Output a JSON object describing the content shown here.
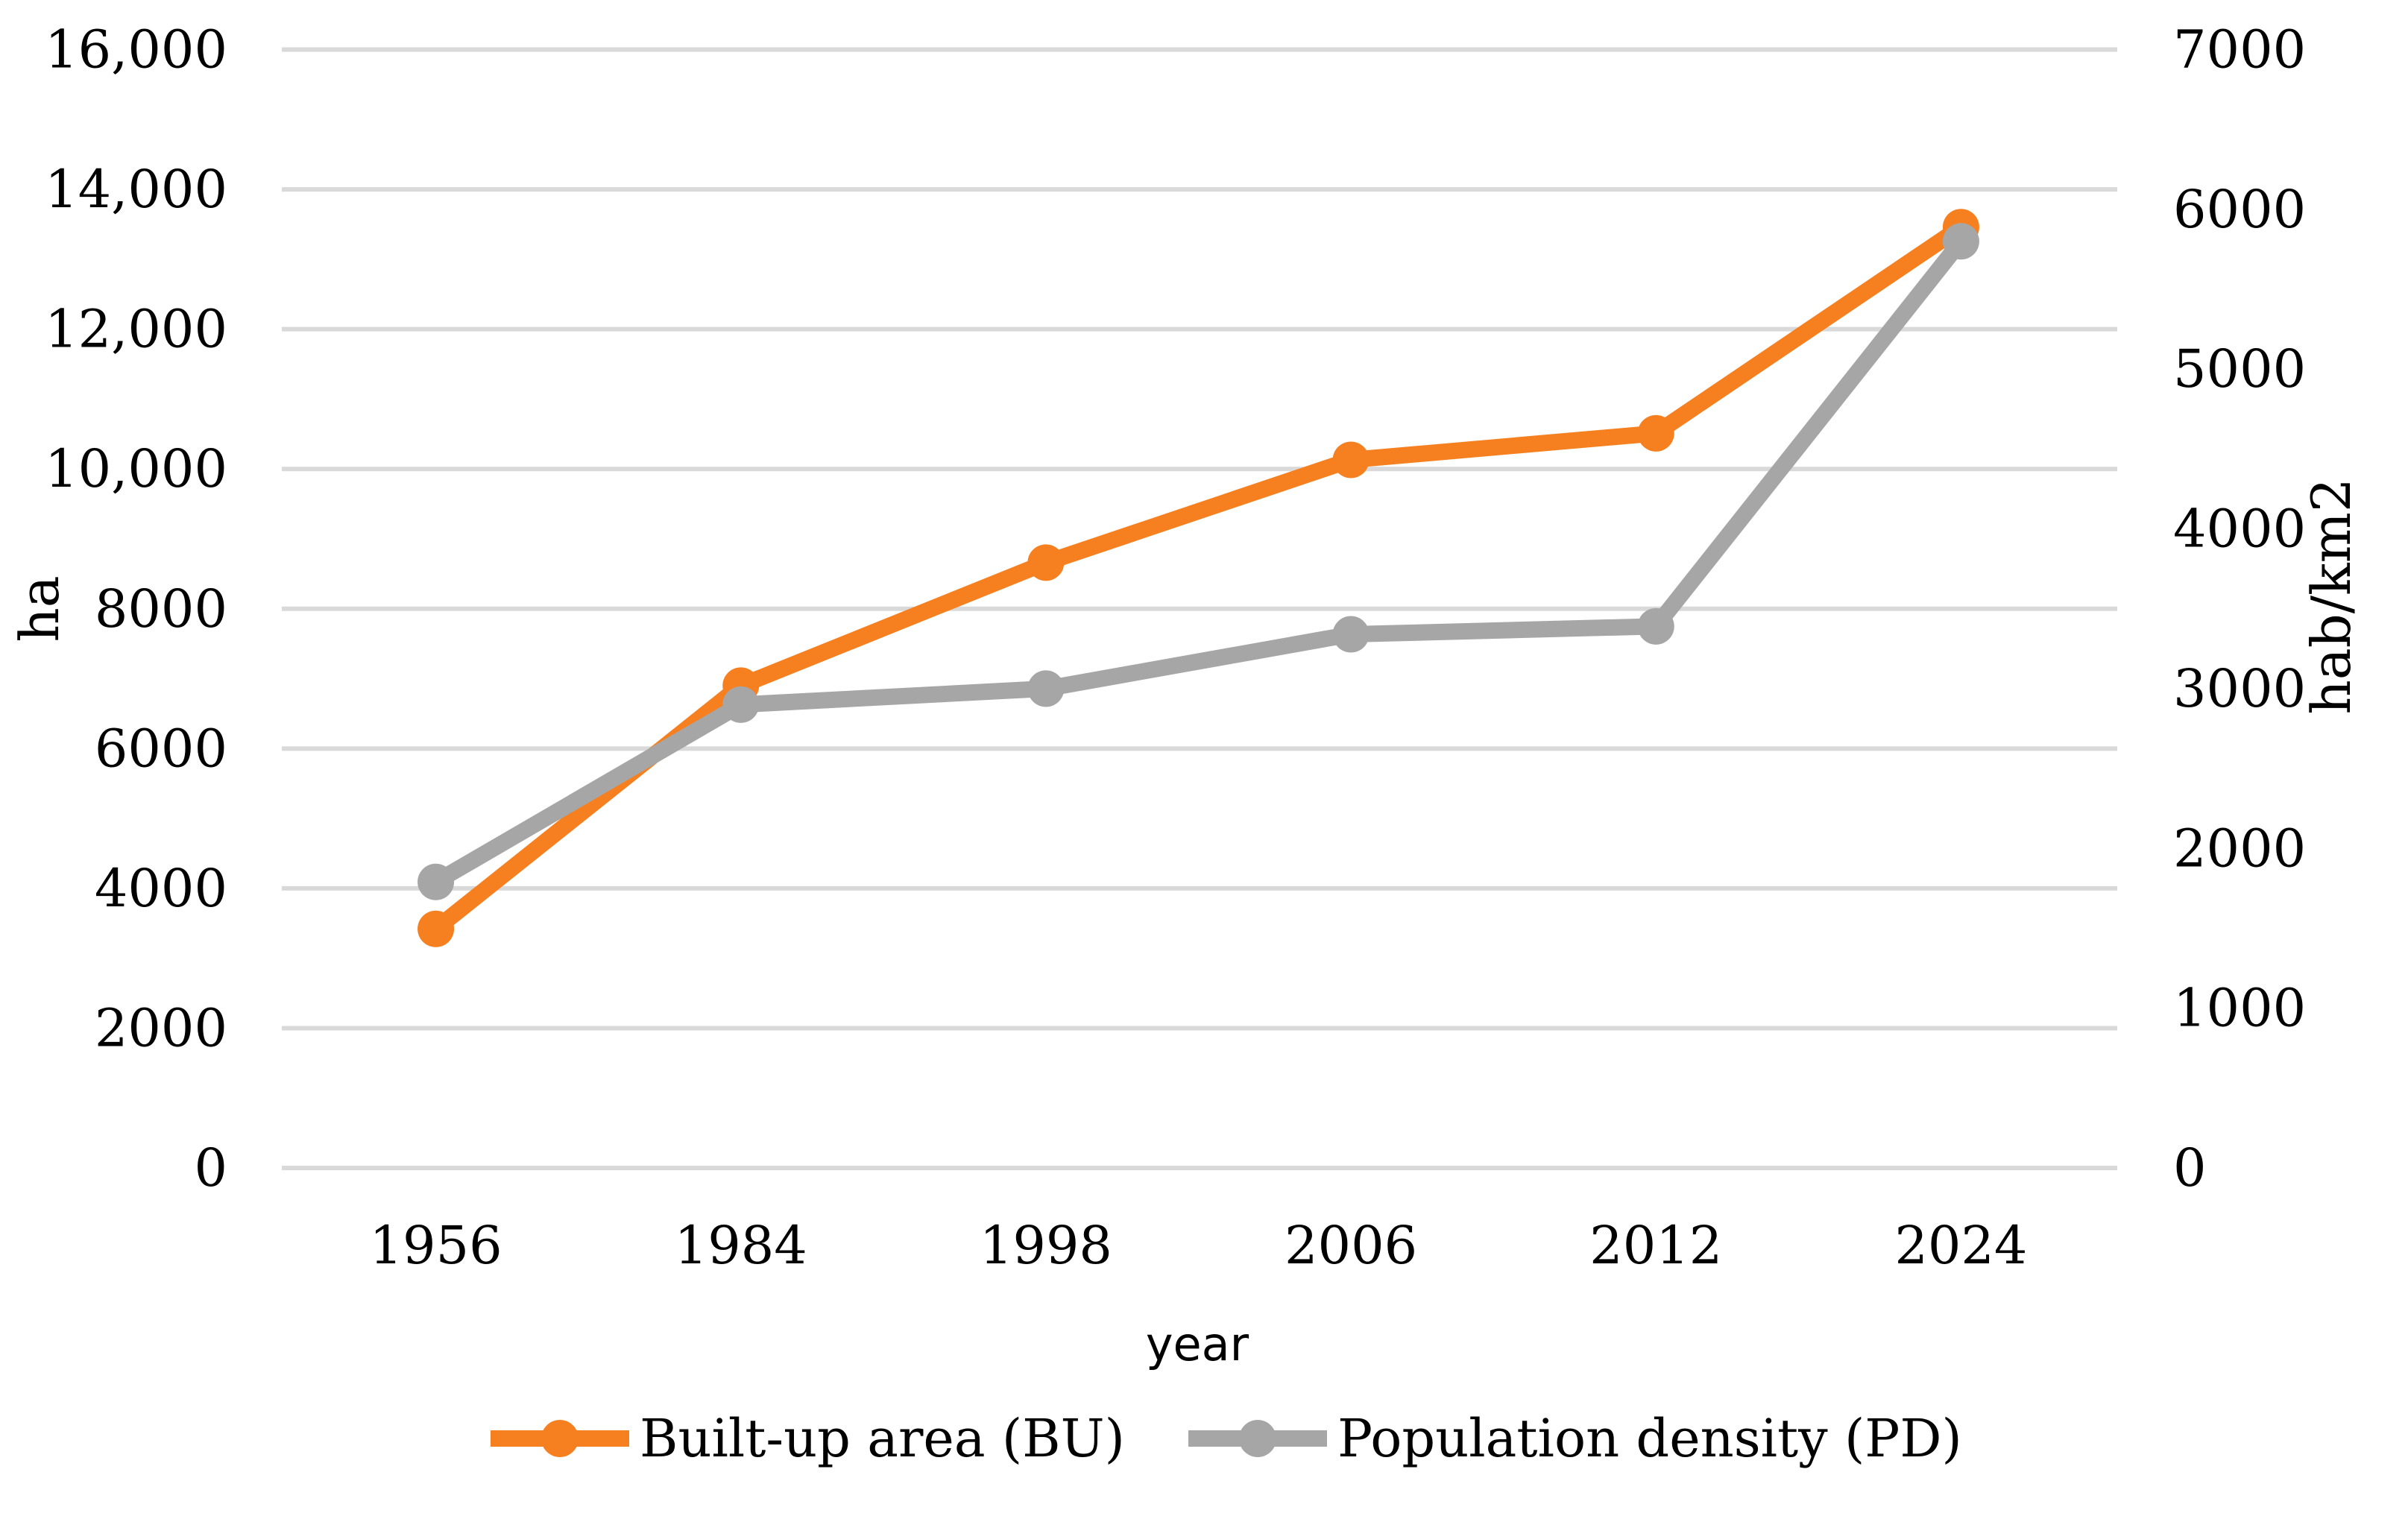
{
  "chart_data": {
    "type": "line",
    "categories": [
      "1956",
      "1984",
      "1998",
      "2006",
      "2012",
      "2024"
    ],
    "series": [
      {
        "name": "Built-up area (BU)",
        "axis": "left",
        "units": "ha",
        "color": "#F68020",
        "marker": "circle",
        "values": [
          3420,
          6900,
          8660,
          10130,
          10510,
          13460
        ]
      },
      {
        "name": "Population density (PD)",
        "axis": "right",
        "units": "hab/km2",
        "color": "#A6A6A6",
        "marker": "circle",
        "values": [
          1790,
          2900,
          3000,
          3340,
          3390,
          5800
        ]
      }
    ],
    "xlabel": "year",
    "left_axis": {
      "label": "ha",
      "min": 0,
      "max": 16000,
      "ticks": [
        "16,000",
        "14,000",
        "12,000",
        "10,000",
        "8000",
        "6000",
        "4000",
        "2000",
        "0"
      ]
    },
    "right_axis": {
      "label": "hab/km2",
      "min": 0,
      "max": 7000,
      "ticks": [
        "7000",
        "6000",
        "5000",
        "4000",
        "3000",
        "2000",
        "1000",
        "0"
      ]
    },
    "grid": "horizontal",
    "legend_position": "bottom",
    "colors": {
      "gridline": "#D9D9D9",
      "text": "#000000",
      "background": "#FFFFFF"
    }
  }
}
